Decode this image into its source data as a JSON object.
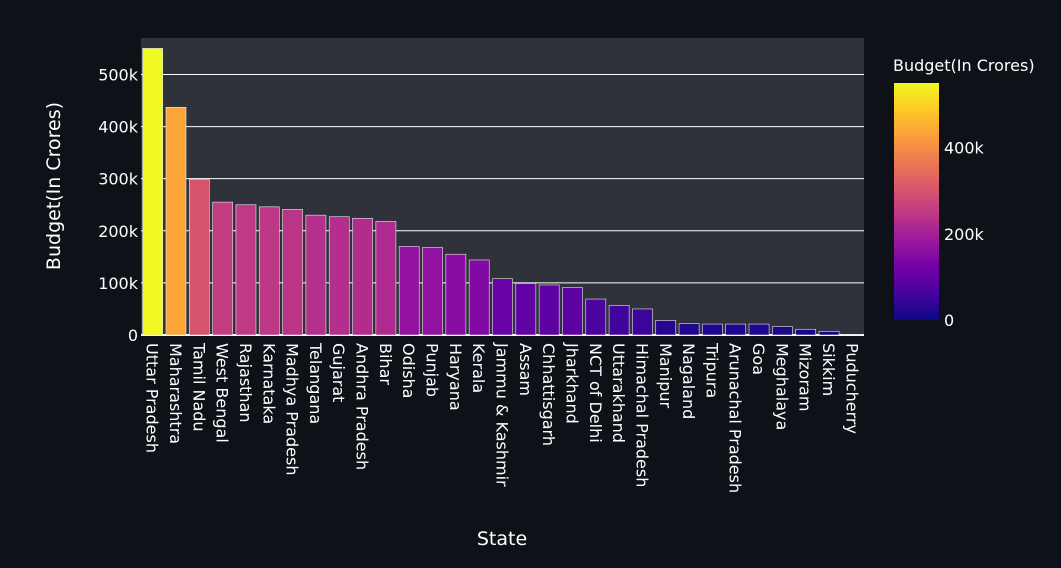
{
  "chart_data": {
    "type": "bar",
    "xlabel": "State",
    "ylabel": "Budget(In Crores)",
    "ylim": [
      0,
      570000
    ],
    "yticks": [
      0,
      100000,
      200000,
      300000,
      400000,
      500000
    ],
    "ytick_labels": [
      "0",
      "100k",
      "200k",
      "300k",
      "400k",
      "500k"
    ],
    "grid": true,
    "legend": "colorbar-right",
    "colorbar": {
      "title": "Budget(In Crores)",
      "range": [
        0,
        550000
      ],
      "ticks": [
        0,
        200000,
        400000
      ],
      "tick_labels": [
        "0",
        "200k",
        "400k"
      ]
    },
    "categories": [
      "Uttar Pradesh",
      "Maharashtra",
      "Tamil Nadu",
      "West Bengal",
      "Rajasthan",
      "Karnataka",
      "Madhya Pradesh",
      "Telangana",
      "Gujarat",
      "Andhra Pradesh",
      "Bihar",
      "Odisha",
      "Punjab",
      "Haryana",
      "Kerala",
      "Jammu & Kashmir",
      "Assam",
      "Chhattisgarh",
      "Jharkhand",
      "NCT of Delhi",
      "Uttarakhand",
      "Himachal Pradesh",
      "Manipur",
      "Nagaland",
      "Tripura",
      "Arunachal Pradesh",
      "Goa",
      "Meghalaya",
      "Mizoram",
      "Sikkim",
      "Puducherry"
    ],
    "values": [
      550000,
      437000,
      299000,
      255000,
      250000,
      246000,
      241000,
      230000,
      227000,
      224000,
      218000,
      170000,
      168000,
      155000,
      144000,
      108000,
      99000,
      96000,
      91000,
      69000,
      57000,
      50000,
      28000,
      22000,
      21000,
      21000,
      21000,
      16000,
      11000,
      7000,
      1000
    ]
  },
  "colors": {
    "background": "#0e1117",
    "plot_background": "#2f323b",
    "grid": "#ffffff",
    "text": "#ffffff",
    "bar_outline": "#e8e8e8",
    "scale": [
      "#0d0887",
      "#46039f",
      "#7201a8",
      "#9c179e",
      "#bd3786",
      "#d8576b",
      "#ed7953",
      "#fb9f3a",
      "#fdca26",
      "#f0f921"
    ]
  }
}
